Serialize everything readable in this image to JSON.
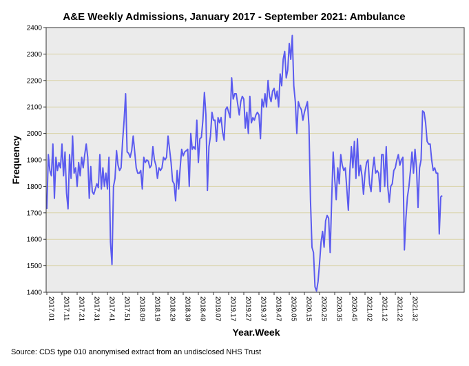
{
  "chart_data": {
    "type": "line",
    "title": "A&E Weekly Admissions, January 2017 - September 2021: Ambulance",
    "xlabel": "Year.Week",
    "ylabel": "Frequency",
    "ylim": [
      1400,
      2400
    ],
    "yticks": [
      1400,
      1500,
      1600,
      1700,
      1800,
      1900,
      2000,
      2100,
      2200,
      2300,
      2400
    ],
    "xtick_labels": [
      "2017.01",
      "2017.11",
      "2017.21",
      "2017.31",
      "2017.41",
      "2017.51",
      "2018.09",
      "2018.19",
      "2018.29",
      "2018.39",
      "2018.49",
      "2019.07",
      "2019.17",
      "2019.27",
      "2019.37",
      "2019.47",
      "2020.05",
      "2020.15",
      "2020.25",
      "2020.35",
      "2020.45",
      "2021.02",
      "2021.12",
      "2021.22",
      "2021.32"
    ],
    "grid": "horizontal",
    "series": [
      {
        "color": "#5b5bef",
        "values": [
          1715,
          1920,
          1860,
          1840,
          1960,
          1755,
          1910,
          1860,
          1890,
          1870,
          1960,
          1840,
          1930,
          1775,
          1715,
          1920,
          1830,
          1990,
          1850,
          1870,
          1800,
          1890,
          1840,
          1910,
          1870,
          1920,
          1960,
          1910,
          1755,
          1875,
          1780,
          1770,
          1790,
          1810,
          1795,
          1920,
          1790,
          1870,
          1800,
          1850,
          1790,
          1910,
          1590,
          1505,
          1800,
          1830,
          1935,
          1880,
          1860,
          1870,
          1970,
          2050,
          2150,
          1930,
          1925,
          1910,
          1935,
          1990,
          1930,
          1870,
          1850,
          1850,
          1860,
          1790,
          1910,
          1890,
          1900,
          1895,
          1870,
          1880,
          1950,
          1900,
          1880,
          1830,
          1870,
          1860,
          1870,
          1910,
          1900,
          1910,
          1990,
          1940,
          1890,
          1820,
          1810,
          1745,
          1860,
          1790,
          1870,
          1940,
          1915,
          1930,
          1935,
          1940,
          1800,
          2000,
          1940,
          1950,
          1940,
          2050,
          1890,
          1980,
          1985,
          2050,
          2155,
          2070,
          1785,
          1950,
          1990,
          2080,
          2050,
          2050,
          1970,
          2060,
          2040,
          2060,
          2005,
          1975,
          2090,
          2100,
          2080,
          2060,
          2210,
          2130,
          2150,
          2150,
          2110,
          2070,
          2120,
          2140,
          2130,
          2020,
          2080,
          2000,
          2140,
          2040,
          2060,
          2050,
          2070,
          2080,
          2070,
          1980,
          2130,
          2100,
          2150,
          2100,
          2200,
          2140,
          2120,
          2160,
          2170,
          2130,
          2160,
          2100,
          2225,
          2180,
          2280,
          2310,
          2210,
          2240,
          2340,
          2280,
          2370,
          2180,
          2120,
          2000,
          2120,
          2100,
          2090,
          2050,
          2080,
          2100,
          2120,
          2030,
          1750,
          1570,
          1550,
          1420,
          1405,
          1440,
          1510,
          1590,
          1630,
          1570,
          1670,
          1690,
          1680,
          1550,
          1750,
          1930,
          1830,
          1750,
          1870,
          1810,
          1920,
          1880,
          1860,
          1870,
          1790,
          1710,
          1860,
          1950,
          1870,
          1970,
          1830,
          1980,
          1840,
          1880,
          1840,
          1770,
          1850,
          1890,
          1900,
          1810,
          1780,
          1860,
          1910,
          1850,
          1860,
          1850,
          1780,
          1920,
          1920,
          1800,
          1950,
          1800,
          1740,
          1800,
          1810,
          1860,
          1870,
          1900,
          1920,
          1880,
          1900,
          1910,
          1560,
          1680,
          1760,
          1800,
          1860,
          1930,
          1850,
          1940,
          1870,
          1720,
          1870,
          1900,
          2085,
          2080,
          2040,
          1970,
          1960,
          1960,
          1900,
          1860,
          1870,
          1850,
          1850,
          1620,
          1760,
          1765
        ]
      }
    ]
  },
  "source_text": "Source: CDS type 010 anonymised extract from an undisclosed NHS Trust"
}
